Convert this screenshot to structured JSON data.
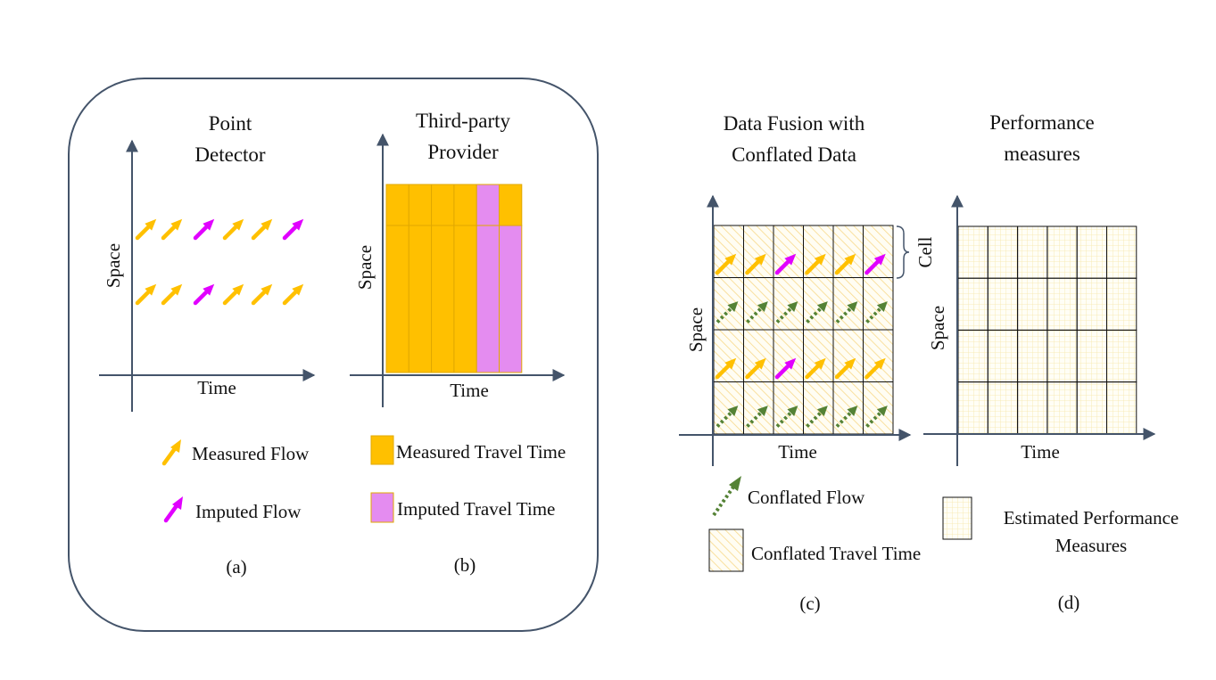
{
  "panel_a": {
    "title_line1": "Point",
    "title_line2": "Detector",
    "ylabel": "Space",
    "xlabel": "Time",
    "caption": "(a)",
    "flow_rows": [
      [
        "measured",
        "measured",
        "imputed",
        "measured",
        "measured",
        "imputed"
      ],
      [
        "measured",
        "measured",
        "imputed",
        "measured",
        "measured",
        "measured"
      ]
    ]
  },
  "panel_b": {
    "title_line1": "Third-party",
    "title_line2": "Provider",
    "ylabel": "Space",
    "xlabel": "Time",
    "caption": "(b)",
    "cell_rows": [
      [
        "measured",
        "measured",
        "measured",
        "measured",
        "imputed",
        "measured"
      ],
      [
        "measured",
        "measured",
        "measured",
        "measured",
        "imputed",
        "imputed"
      ]
    ]
  },
  "legend_ab": {
    "measured_flow": "Measured Flow",
    "imputed_flow": "Imputed Flow",
    "measured_travel_time": "Measured Travel Time",
    "imputed_travel_time": "Imputed Travel Time"
  },
  "panel_c": {
    "title_line1": "Data Fusion with",
    "title_line2": "Conflated Data",
    "ylabel": "Space",
    "xlabel": "Time",
    "cell_label": "Cell",
    "caption": "(c)",
    "arrow_rows": [
      [
        "measured",
        "measured",
        "imputed",
        "measured",
        "measured",
        "imputed"
      ],
      [
        "conflated",
        "conflated",
        "conflated",
        "conflated",
        "conflated",
        "conflated"
      ],
      [
        "measured",
        "measured",
        "imputed",
        "measured",
        "measured",
        "measured"
      ],
      [
        "conflated",
        "conflated",
        "conflated",
        "conflated",
        "conflated",
        "conflated"
      ]
    ],
    "legend_conflated_flow": "Conflated Flow",
    "legend_conflated_travel_time": "Conflated Travel Time"
  },
  "panel_d": {
    "title_line1": "Performance",
    "title_line2": "measures",
    "ylabel": "Space",
    "xlabel": "Time",
    "caption": "(d)",
    "legend_line1": "Estimated Performance",
    "legend_line2": "Measures"
  },
  "colors": {
    "measured": "#FFC000",
    "imputed": "#E100FF",
    "imputed_fill": "#E48CF0",
    "conflated": "#548235",
    "axis": "#44546A",
    "panel_border": "#44546A",
    "hatch": "#F8D98A",
    "grid_fine": "#F6E6A8"
  }
}
